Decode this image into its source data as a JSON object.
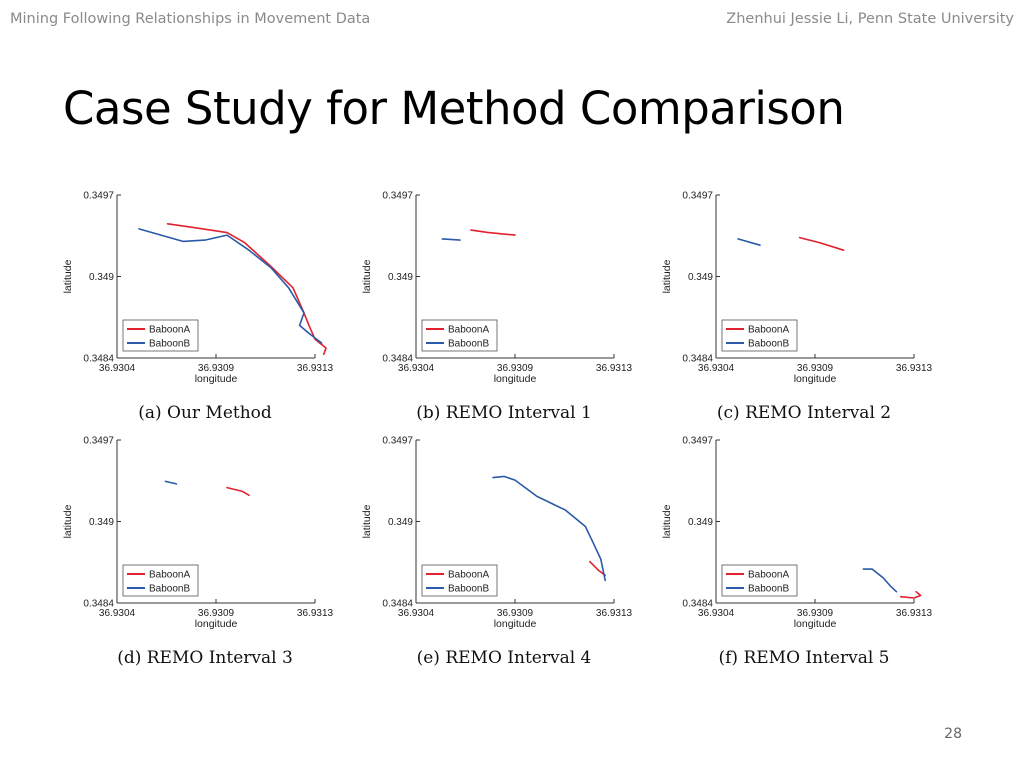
{
  "header": {
    "left": "Mining Following Relationships in Movement Data",
    "right": "Zhenhui Jessie Li, Penn State University"
  },
  "title": "Case Study for Method Comparison",
  "page_number": "28",
  "colors": {
    "baboonA": "#e0222e",
    "baboonB": "#2a5aa8"
  },
  "chart_data": [
    {
      "type": "line",
      "caption": "(a) Our Method",
      "xlabel": "longitude",
      "ylabel": "latitude",
      "xlim": [
        36.9304,
        36.9313
      ],
      "ylim": [
        0.3484,
        0.3497
      ],
      "xticks": [
        "36.9304",
        "36.9309",
        "36.9313"
      ],
      "yticks": [
        "0.3497",
        "0.349",
        "0.3484"
      ],
      "legend": [
        "BaboonA",
        "BaboonB"
      ],
      "series": [
        {
          "name": "BaboonA",
          "points": [
            [
              36.93063,
              0.34947
            ],
            [
              36.93075,
              0.34944
            ],
            [
              36.9309,
              0.3494
            ],
            [
              36.93098,
              0.34932
            ],
            [
              36.9311,
              0.34913
            ],
            [
              36.9312,
              0.34896
            ],
            [
              36.93125,
              0.34876
            ],
            [
              36.93127,
              0.34867
            ],
            [
              36.9313,
              0.34855
            ],
            [
              36.93135,
              0.34848
            ],
            [
              36.93134,
              0.34843
            ]
          ]
        },
        {
          "name": "BaboonB",
          "points": [
            [
              36.9305,
              0.34943
            ],
            [
              36.9306,
              0.34938
            ],
            [
              36.9307,
              0.34933
            ],
            [
              36.9308,
              0.34934
            ],
            [
              36.9309,
              0.34938
            ],
            [
              36.931,
              0.34926
            ],
            [
              36.9311,
              0.34912
            ],
            [
              36.93118,
              0.34896
            ],
            [
              36.93125,
              0.34876
            ],
            [
              36.93123,
              0.34866
            ],
            [
              36.93127,
              0.3486
            ],
            [
              36.93133,
              0.34852
            ]
          ]
        }
      ]
    },
    {
      "type": "line",
      "caption": "(b) REMO Interval 1",
      "xlabel": "longitude",
      "ylabel": "latitude",
      "xlim": [
        36.9304,
        36.9313
      ],
      "ylim": [
        0.3484,
        0.3497
      ],
      "xticks": [
        "36.9304",
        "36.9309",
        "36.9313"
      ],
      "yticks": [
        "0.3497",
        "0.349",
        "0.3484"
      ],
      "legend": [
        "BaboonA",
        "BaboonB"
      ],
      "series": [
        {
          "name": "BaboonA",
          "points": [
            [
              36.93065,
              0.34942
            ],
            [
              36.93073,
              0.3494
            ],
            [
              36.93085,
              0.34938
            ]
          ]
        },
        {
          "name": "BaboonB",
          "points": [
            [
              36.93052,
              0.34935
            ],
            [
              36.9306,
              0.34934
            ]
          ]
        }
      ]
    },
    {
      "type": "line",
      "caption": "(c) REMO Interval 2",
      "xlabel": "longitude",
      "ylabel": "latitude",
      "xlim": [
        36.9304,
        36.9313
      ],
      "ylim": [
        0.3484,
        0.3497
      ],
      "xticks": [
        "36.9304",
        "36.9309",
        "36.9313"
      ],
      "yticks": [
        "0.3497",
        "0.349",
        "0.3484"
      ],
      "legend": [
        "BaboonA",
        "BaboonB"
      ],
      "series": [
        {
          "name": "BaboonA",
          "points": [
            [
              36.93078,
              0.34936
            ],
            [
              36.93087,
              0.34932
            ],
            [
              36.93098,
              0.34926
            ]
          ]
        },
        {
          "name": "BaboonB",
          "points": [
            [
              36.9305,
              0.34935
            ],
            [
              36.9306,
              0.3493
            ]
          ]
        }
      ]
    },
    {
      "type": "line",
      "caption": "(d) REMO Interval 3",
      "xlabel": "longitude",
      "ylabel": "latitude",
      "xlim": [
        36.9304,
        36.9313
      ],
      "ylim": [
        0.3484,
        0.3497
      ],
      "xticks": [
        "36.9304",
        "36.9309",
        "36.9313"
      ],
      "yticks": [
        "0.3497",
        "0.349",
        "0.3484"
      ],
      "legend": [
        "BaboonA",
        "BaboonB"
      ],
      "series": [
        {
          "name": "BaboonA",
          "points": [
            [
              36.9309,
              0.34932
            ],
            [
              36.93097,
              0.34929
            ],
            [
              36.931,
              0.34926
            ]
          ]
        },
        {
          "name": "BaboonB",
          "points": [
            [
              36.93062,
              0.34937
            ],
            [
              36.93067,
              0.34935
            ]
          ]
        }
      ]
    },
    {
      "type": "line",
      "caption": "(e) REMO Interval 4",
      "xlabel": "longitude",
      "ylabel": "latitude",
      "xlim": [
        36.9304,
        36.9313
      ],
      "ylim": [
        0.3484,
        0.3497
      ],
      "xticks": [
        "36.9304",
        "36.9309",
        "36.9313"
      ],
      "yticks": [
        "0.3497",
        "0.349",
        "0.3484"
      ],
      "legend": [
        "BaboonA",
        "BaboonB"
      ],
      "series": [
        {
          "name": "BaboonA",
          "points": [
            [
              36.93119,
              0.34873
            ],
            [
              36.93123,
              0.34866
            ],
            [
              36.93126,
              0.34862
            ]
          ]
        },
        {
          "name": "BaboonB",
          "points": [
            [
              36.93075,
              0.3494
            ],
            [
              36.9308,
              0.34941
            ],
            [
              36.93085,
              0.34938
            ],
            [
              36.93095,
              0.34925
            ],
            [
              36.93108,
              0.34914
            ],
            [
              36.93117,
              0.34901
            ],
            [
              36.9312,
              0.3489
            ],
            [
              36.93124,
              0.34875
            ],
            [
              36.93126,
              0.34858
            ]
          ]
        }
      ]
    },
    {
      "type": "line",
      "caption": "(f) REMO Interval 5",
      "xlabel": "longitude",
      "ylabel": "latitude",
      "xlim": [
        36.9304,
        36.9313
      ],
      "ylim": [
        0.3484,
        0.3497
      ],
      "xticks": [
        "36.9304",
        "36.9309",
        "36.9313"
      ],
      "yticks": [
        "0.3497",
        "0.349",
        "0.3484"
      ],
      "legend": [
        "BaboonA",
        "BaboonB"
      ],
      "series": [
        {
          "name": "BaboonA",
          "points": [
            [
              36.93124,
              0.34845
            ],
            [
              36.9313,
              0.34844
            ],
            [
              36.93133,
              0.34846
            ],
            [
              36.93131,
              0.34849
            ]
          ]
        },
        {
          "name": "BaboonB",
          "points": [
            [
              36.93107,
              0.34867
            ],
            [
              36.93111,
              0.34867
            ],
            [
              36.93116,
              0.3486
            ],
            [
              36.93119,
              0.34854
            ],
            [
              36.93122,
              0.34849
            ]
          ]
        }
      ]
    }
  ]
}
